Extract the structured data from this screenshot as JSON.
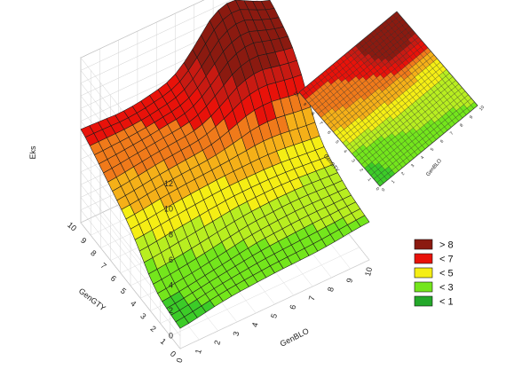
{
  "chart_data": {
    "type": "surface",
    "title": "",
    "xlabel": "GenBLO",
    "ylabel": "GenGTY",
    "zlabel": "Eks",
    "x_ticks": [
      "0",
      "1",
      "2",
      "3",
      "4",
      "5",
      "6",
      "7",
      "8",
      "9",
      "10"
    ],
    "y_ticks": [
      "0",
      "1",
      "2",
      "3",
      "4",
      "5",
      "6",
      "7",
      "8",
      "9",
      "10"
    ],
    "z_ticks": [
      "0",
      "2",
      "4",
      "6",
      "8",
      "10",
      "12"
    ],
    "xlim": [
      0,
      10
    ],
    "ylim": [
      0,
      10
    ],
    "zlim": [
      -1,
      12
    ],
    "grid": true,
    "surface_z_samples": {
      "grid_x": [
        0,
        2.5,
        5,
        7.5,
        10
      ],
      "grid_y": [
        0,
        2.5,
        5,
        7.5,
        10
      ],
      "z_rows_by_y": [
        [
          0.5,
          1.2,
          1.4,
          1.5,
          2.0
        ],
        [
          1.0,
          1.5,
          2.3,
          2.6,
          2.4
        ],
        [
          3.5,
          4.0,
          4.2,
          4.0,
          3.5
        ],
        [
          5.0,
          5.6,
          6.0,
          8.8,
          8.0
        ],
        [
          6.5,
          6.2,
          7.0,
          11.6,
          9.5
        ]
      ]
    },
    "legend": {
      "position": "bottom-right",
      "items": [
        {
          "label": "> 8",
          "color": "#8b1a10"
        },
        {
          "label": "< 7",
          "color": "#e8120a"
        },
        {
          "label": "< 5",
          "color": "#f5ee14"
        },
        {
          "label": "< 3",
          "color": "#74e61c"
        },
        {
          "label": "< 1",
          "color": "#24a82a"
        }
      ]
    },
    "inset": {
      "type": "contour",
      "xlabel": "GenBLO",
      "ylabel": "GenGTY",
      "x_ticks": [
        "0",
        "1",
        "2",
        "3",
        "4",
        "5",
        "6",
        "7",
        "8",
        "9",
        "10"
      ],
      "y_ticks": [
        "0",
        "1",
        "2",
        "3",
        "4",
        "5",
        "6",
        "7",
        "8",
        "9",
        "10"
      ]
    }
  }
}
